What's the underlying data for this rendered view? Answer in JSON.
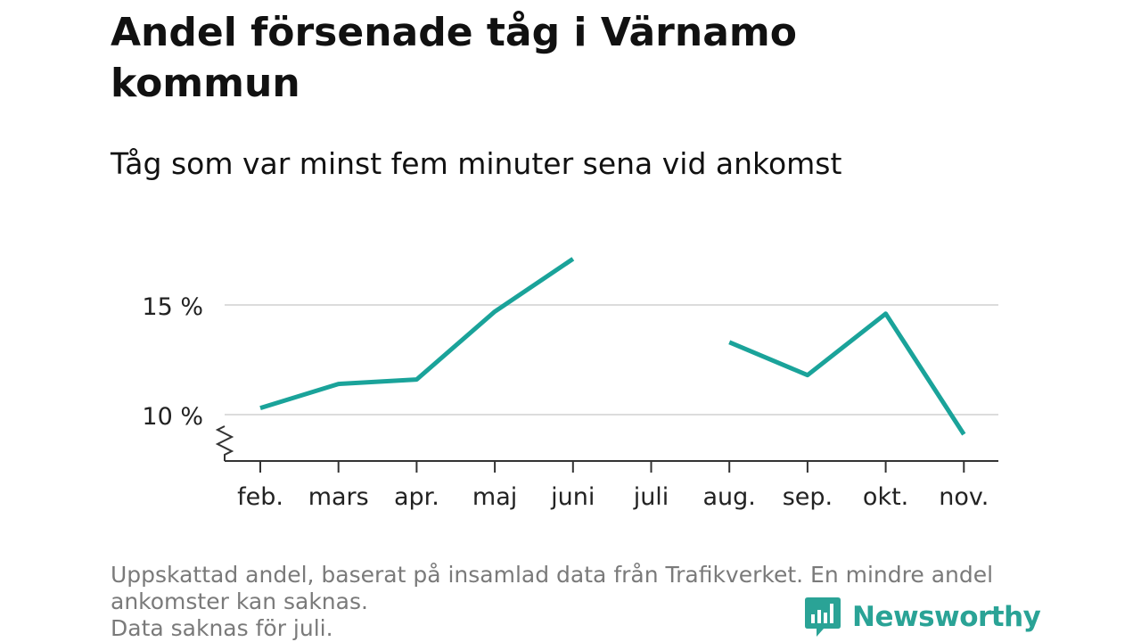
{
  "title": "Andel försenade tåg i Värnamo kommun",
  "subtitle": "Tåg som var minst fem minuter sena vid ankomst",
  "chart_data": {
    "type": "line",
    "categories": [
      "feb.",
      "mars",
      "apr.",
      "maj",
      "juni",
      "juli",
      "aug.",
      "sep.",
      "okt.",
      "nov."
    ],
    "series": [
      {
        "values": [
          10.3,
          11.4,
          11.6,
          14.7,
          17.1,
          null,
          13.3,
          11.8,
          14.6,
          9.1
        ]
      }
    ],
    "yticks": [
      10,
      15
    ],
    "ytick_labels": [
      "10 %",
      "15 %"
    ],
    "ylim": [
      8,
      18.5
    ],
    "y_axis_break": true,
    "grid": true,
    "line_color": "#1aa39a"
  },
  "footnote": {
    "line1": "Uppskattad andel, baserat på insamlad data från Trafikverket. En mindre andel",
    "line2": "ankomster kan saknas.",
    "line3": "Data saknas för juli."
  },
  "logo": {
    "text": "Newsworthy",
    "icon": "bar-chart-speech-bubble-icon",
    "color": "#2aa396"
  }
}
